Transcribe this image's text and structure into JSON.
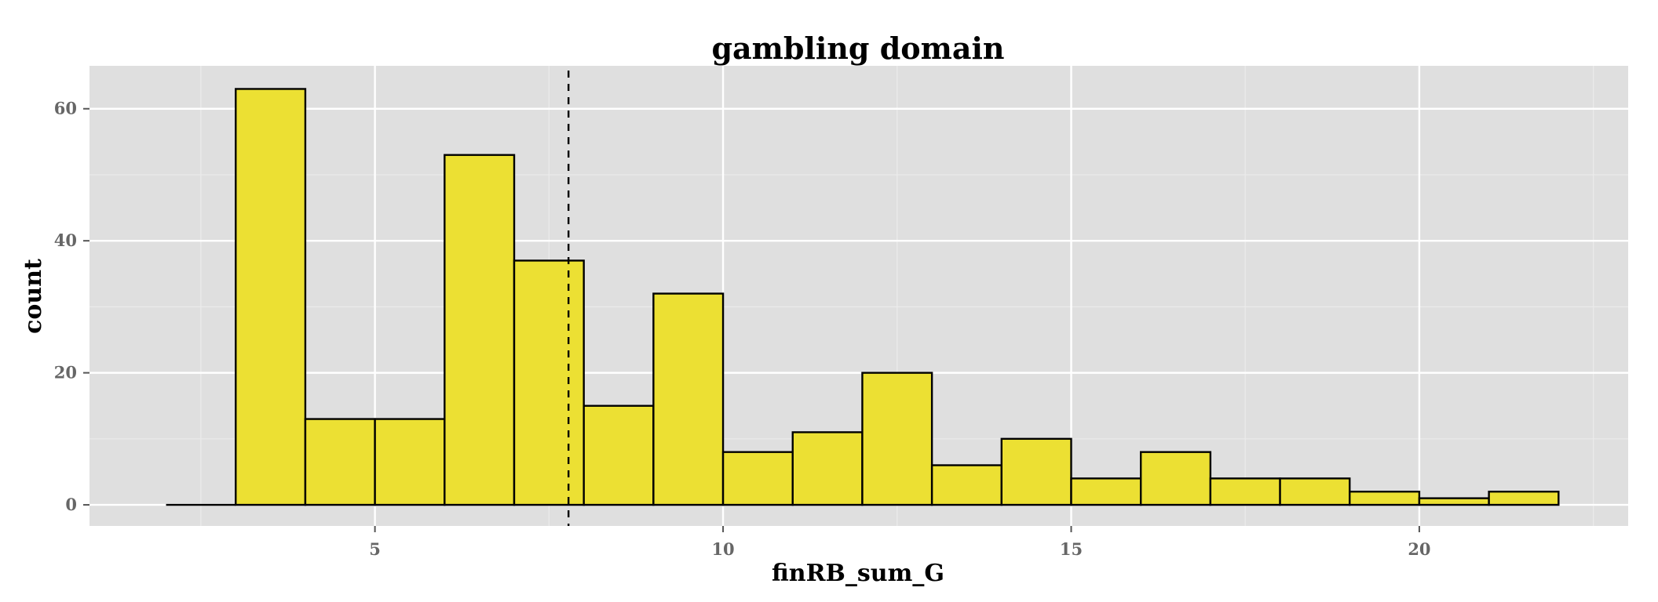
{
  "chart_data": {
    "type": "bar",
    "title": "gambling domain",
    "xlabel": "finRB_sum_G",
    "ylabel": "count",
    "bin_width": 1,
    "bins": [
      {
        "start": 2,
        "count": 0
      },
      {
        "start": 3,
        "count": 63
      },
      {
        "start": 4,
        "count": 13
      },
      {
        "start": 5,
        "count": 13
      },
      {
        "start": 6,
        "count": 53
      },
      {
        "start": 7,
        "count": 37
      },
      {
        "start": 8,
        "count": 15
      },
      {
        "start": 9,
        "count": 32
      },
      {
        "start": 10,
        "count": 8
      },
      {
        "start": 11,
        "count": 11
      },
      {
        "start": 12,
        "count": 20
      },
      {
        "start": 13,
        "count": 6
      },
      {
        "start": 14,
        "count": 10
      },
      {
        "start": 15,
        "count": 4
      },
      {
        "start": 16,
        "count": 8
      },
      {
        "start": 17,
        "count": 4
      },
      {
        "start": 18,
        "count": 4
      },
      {
        "start": 19,
        "count": 2
      },
      {
        "start": 20,
        "count": 1
      },
      {
        "start": 21,
        "count": 2
      }
    ],
    "mean_line": {
      "x": 7.78,
      "style": "dashed"
    },
    "xlim": [
      0.9,
      23.0
    ],
    "ylim": [
      -3.2,
      66.5
    ],
    "x_ticks": [
      5,
      10,
      15,
      20
    ],
    "y_ticks": [
      0,
      20,
      40,
      60
    ],
    "grid": true,
    "legend": "none",
    "colors": {
      "bar_fill": "#ECE033",
      "bar_stroke": "#000000",
      "panel_bg": "#DFDFDF",
      "grid_major": "#FFFFFF",
      "grid_minor": "#EBEBEB",
      "mean_line": "#000000"
    }
  }
}
